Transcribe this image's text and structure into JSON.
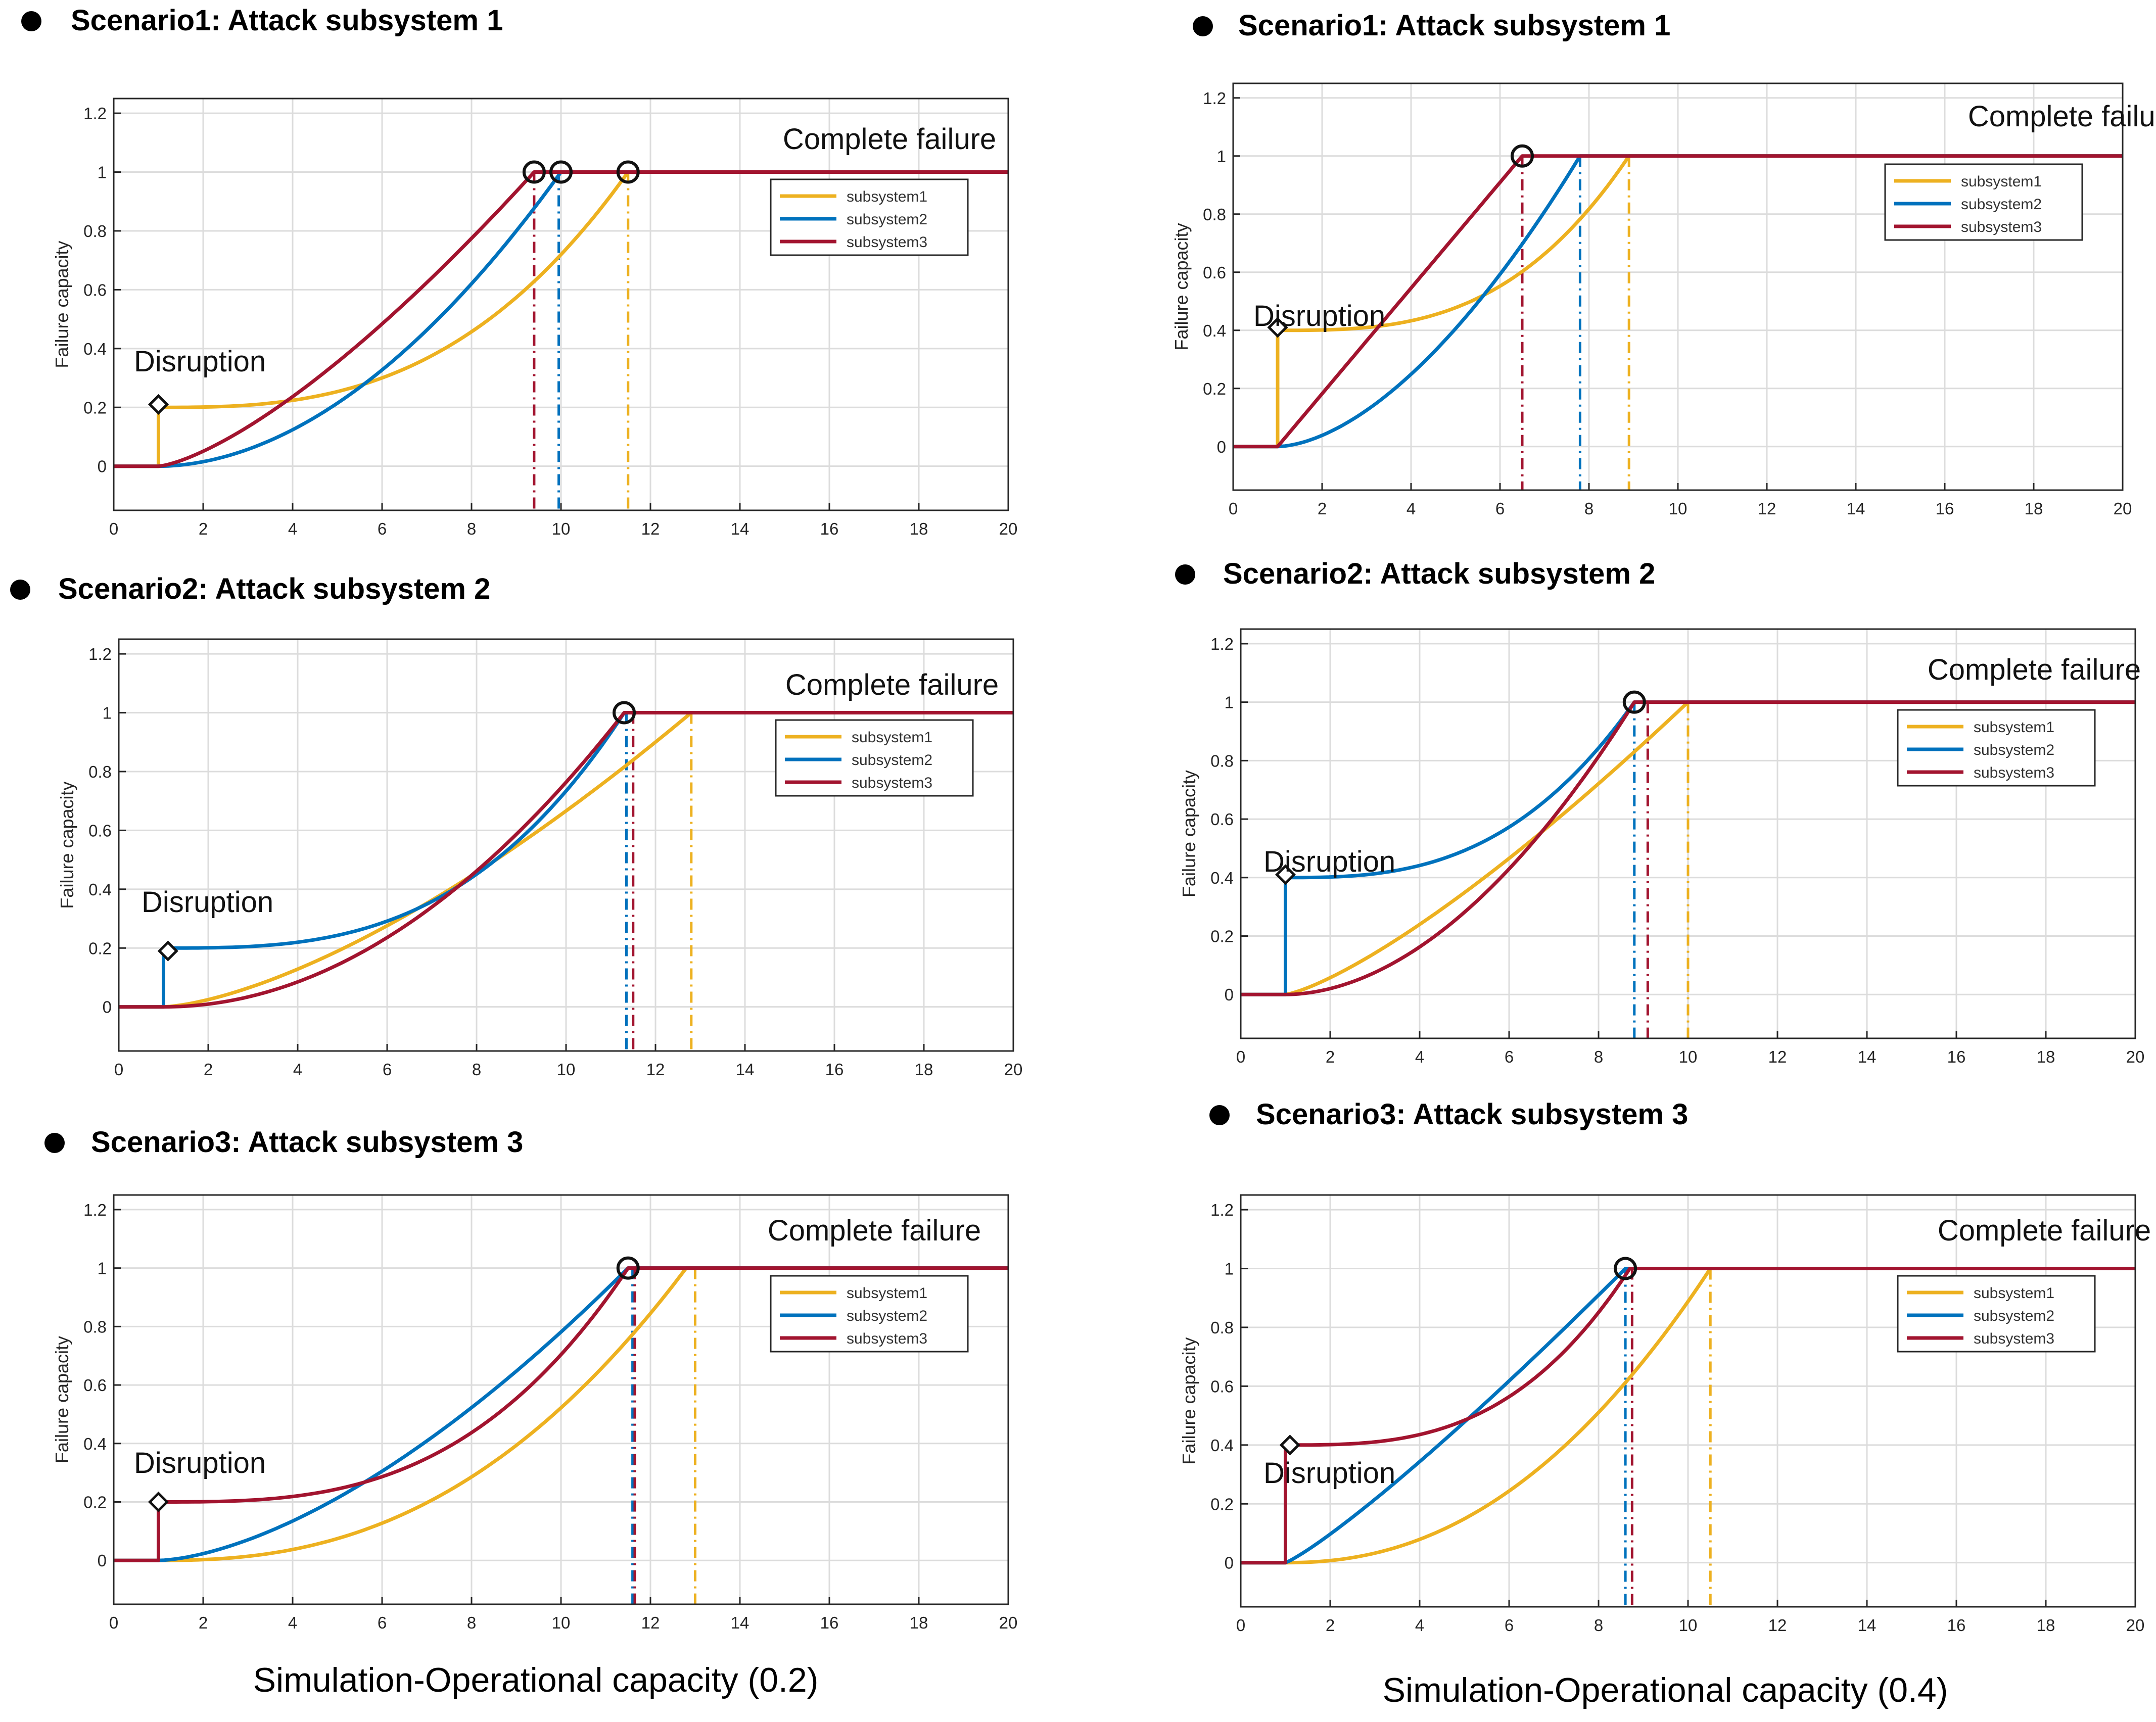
{
  "colors": {
    "subsystem1": "#EDB120",
    "subsystem2": "#0072BD",
    "subsystem3": "#A2142F"
  },
  "footers": {
    "left": "Simulation-Operational capacity (0.2)",
    "right": "Simulation-Operational capacity (0.4)"
  },
  "chart_data": [
    {
      "type": "line",
      "title": "Scenario1: Attack subsystem 1",
      "capacity": "0.2",
      "xlabel": "",
      "ylabel": "Failure capacity",
      "xlim": [
        0,
        20
      ],
      "ylim": [
        -0.15,
        1.25
      ],
      "xticks": [
        "0",
        "2",
        "4",
        "6",
        "8",
        "10",
        "12",
        "14",
        "16",
        "18",
        "20"
      ],
      "yticks": [
        "0",
        "0.2",
        "0.4",
        "0.6",
        "0.8",
        "1",
        "1.2"
      ],
      "legend": [
        "subsystem1",
        "subsystem2",
        "subsystem3"
      ],
      "legend_position": "top-right",
      "annotations": {
        "disruption": "Disruption",
        "complete": "Complete failure"
      },
      "disruption_point": {
        "x": 1.0,
        "y": 0.21
      },
      "series": [
        {
          "name": "subsystem1",
          "attacked": true,
          "x0": 1,
          "y0": 0.2,
          "xend": 11.5,
          "yend": 1.0,
          "shape": "power",
          "p": 2.8,
          "failure_x": 11.5
        },
        {
          "name": "subsystem2",
          "x0": 1,
          "y0": 0,
          "xend": 10.0,
          "yend": 1.0,
          "shape": "power",
          "p": 1.9,
          "failure_x": 9.95
        },
        {
          "name": "subsystem3",
          "x0": 1,
          "y0": 0,
          "xend": 9.4,
          "yend": 1.0,
          "shape": "power",
          "p": 1.4,
          "failure_x": 9.4
        }
      ],
      "failure_markers": [
        9.4,
        10.0,
        11.5
      ]
    },
    {
      "type": "line",
      "title": "Scenario1: Attack subsystem 1",
      "capacity": "0.4",
      "xlabel": "",
      "ylabel": "Failure capacity",
      "xlim": [
        0,
        20
      ],
      "ylim": [
        -0.15,
        1.25
      ],
      "xticks": [
        "0",
        "2",
        "4",
        "6",
        "8",
        "10",
        "12",
        "14",
        "16",
        "18",
        "20"
      ],
      "yticks": [
        "0",
        "0.2",
        "0.4",
        "0.6",
        "0.8",
        "1",
        "1.2"
      ],
      "legend": [
        "subsystem1",
        "subsystem2",
        "subsystem3"
      ],
      "legend_position": "top-right",
      "annotations": {
        "disruption": "Disruption",
        "complete": "Complete failure"
      },
      "disruption_point": {
        "x": 1.0,
        "y": 0.41
      },
      "series": [
        {
          "name": "subsystem1",
          "attacked": true,
          "x0": 1,
          "y0": 0.4,
          "xend": 8.9,
          "yend": 1.0,
          "shape": "power",
          "p": 3.0,
          "failure_x": 8.9
        },
        {
          "name": "subsystem2",
          "x0": 1,
          "y0": 0,
          "xend": 7.8,
          "yend": 1.0,
          "shape": "power",
          "p": 1.7,
          "failure_x": 7.8
        },
        {
          "name": "subsystem3",
          "x0": 1,
          "y0": 0,
          "xend": 6.5,
          "yend": 1.0,
          "shape": "power",
          "p": 1.0,
          "failure_x": 6.5
        }
      ],
      "failure_markers": [
        6.5
      ]
    },
    {
      "type": "line",
      "title": "Scenario2: Attack subsystem 2",
      "capacity": "0.2",
      "xlabel": "",
      "ylabel": "Failure capacity",
      "xlim": [
        0,
        20
      ],
      "ylim": [
        -0.15,
        1.25
      ],
      "xticks": [
        "0",
        "2",
        "4",
        "6",
        "8",
        "10",
        "12",
        "14",
        "16",
        "18",
        "20"
      ],
      "yticks": [
        "0",
        "0.2",
        "0.4",
        "0.6",
        "0.8",
        "1",
        "1.2"
      ],
      "legend": [
        "subsystem1",
        "subsystem2",
        "subsystem3"
      ],
      "legend_position": "top-right",
      "annotations": {
        "disruption": "Disruption",
        "complete": "Complete failure"
      },
      "disruption_point": {
        "x": 1.1,
        "y": 0.19
      },
      "series": [
        {
          "name": "subsystem1",
          "x0": 1,
          "y0": 0,
          "xend": 12.8,
          "yend": 1.0,
          "shape": "power",
          "p": 1.5,
          "failure_x": 12.8
        },
        {
          "name": "subsystem2",
          "attacked": true,
          "x0": 1,
          "y0": 0.2,
          "xend": 11.3,
          "yend": 1.0,
          "shape": "power",
          "p": 3.0,
          "failure_x": 11.35
        },
        {
          "name": "subsystem3",
          "x0": 1,
          "y0": 0,
          "xend": 11.3,
          "yend": 1.0,
          "shape": "power",
          "p": 2.0,
          "failure_x": 11.5
        }
      ],
      "failure_markers": [
        11.3
      ]
    },
    {
      "type": "line",
      "title": "Scenario2: Attack subsystem 2",
      "capacity": "0.4",
      "xlabel": "",
      "ylabel": "Failure capacity",
      "xlim": [
        0,
        20
      ],
      "ylim": [
        -0.15,
        1.25
      ],
      "xticks": [
        "0",
        "2",
        "4",
        "6",
        "8",
        "10",
        "12",
        "14",
        "16",
        "18",
        "20"
      ],
      "yticks": [
        "0",
        "0.2",
        "0.4",
        "0.6",
        "0.8",
        "1",
        "1.2"
      ],
      "legend": [
        "subsystem1",
        "subsystem2",
        "subsystem3"
      ],
      "legend_position": "top-right",
      "annotations": {
        "disruption": "Disruption",
        "complete": "Complete failure"
      },
      "disruption_point": {
        "x": 1.0,
        "y": 0.41
      },
      "series": [
        {
          "name": "subsystem1",
          "x0": 1,
          "y0": 0,
          "xend": 10.0,
          "yend": 1.0,
          "shape": "power",
          "p": 1.3,
          "failure_x": 10.0
        },
        {
          "name": "subsystem2",
          "attacked": true,
          "x0": 1,
          "y0": 0.4,
          "xend": 8.8,
          "yend": 1.0,
          "shape": "power",
          "p": 2.8,
          "failure_x": 8.8
        },
        {
          "name": "subsystem3",
          "x0": 1,
          "y0": 0,
          "xend": 8.8,
          "yend": 1.0,
          "shape": "power",
          "p": 1.9,
          "failure_x": 9.1
        }
      ],
      "failure_markers": [
        8.8
      ]
    },
    {
      "type": "line",
      "title": "Scenario3: Attack subsystem 3",
      "capacity": "0.2",
      "xlabel": "",
      "ylabel": "Failure capacity",
      "xlim": [
        0,
        20
      ],
      "ylim": [
        -0.15,
        1.25
      ],
      "xticks": [
        "0",
        "2",
        "4",
        "6",
        "8",
        "10",
        "12",
        "14",
        "16",
        "18",
        "20"
      ],
      "yticks": [
        "0",
        "0.2",
        "0.4",
        "0.6",
        "0.8",
        "1",
        "1.2"
      ],
      "legend": [
        "subsystem1",
        "subsystem2",
        "subsystem3"
      ],
      "legend_position": "top-right",
      "annotations": {
        "disruption": "Disruption",
        "complete": "Complete failure"
      },
      "disruption_point": {
        "x": 1.0,
        "y": 0.2
      },
      "series": [
        {
          "name": "subsystem1",
          "x0": 1,
          "y0": 0,
          "xend": 12.8,
          "yend": 1.0,
          "shape": "power",
          "p": 2.4,
          "failure_x": 13.0
        },
        {
          "name": "subsystem2",
          "x0": 1,
          "y0": 0,
          "xend": 11.5,
          "yend": 1.0,
          "shape": "power",
          "p": 1.6,
          "failure_x": 11.6
        },
        {
          "name": "subsystem3",
          "attacked": true,
          "x0": 1,
          "y0": 0.2,
          "xend": 11.5,
          "yend": 1.0,
          "shape": "power",
          "p": 3.0,
          "failure_x": 11.65
        }
      ],
      "failure_markers": [
        11.5
      ]
    },
    {
      "type": "line",
      "title": "Scenario3: Attack subsystem 3",
      "capacity": "0.4",
      "xlabel": "",
      "ylabel": "Failure capacity",
      "xlim": [
        0,
        20
      ],
      "ylim": [
        -0.15,
        1.25
      ],
      "xticks": [
        "0",
        "2",
        "4",
        "6",
        "8",
        "10",
        "12",
        "14",
        "16",
        "18",
        "20"
      ],
      "yticks": [
        "0",
        "0.2",
        "0.4",
        "0.6",
        "0.8",
        "1",
        "1.2"
      ],
      "legend": [
        "subsystem1",
        "subsystem2",
        "subsystem3"
      ],
      "legend_position": "top-right",
      "annotations": {
        "disruption": "Disruption",
        "complete": "Complete failure"
      },
      "disruption_point": {
        "x": 1.1,
        "y": 0.4
      },
      "series": [
        {
          "name": "subsystem1",
          "x0": 1,
          "y0": 0,
          "xend": 10.5,
          "yend": 1.0,
          "shape": "power",
          "p": 2.2,
          "failure_x": 10.5
        },
        {
          "name": "subsystem2",
          "x0": 1,
          "y0": 0,
          "xend": 8.6,
          "yend": 1.0,
          "shape": "power",
          "p": 1.15,
          "failure_x": 8.6
        },
        {
          "name": "subsystem3",
          "attacked": true,
          "x0": 1,
          "y0": 0.4,
          "xend": 8.7,
          "yend": 1.0,
          "shape": "power",
          "p": 3.0,
          "failure_x": 8.75
        }
      ],
      "failure_markers": [
        8.6
      ]
    }
  ]
}
